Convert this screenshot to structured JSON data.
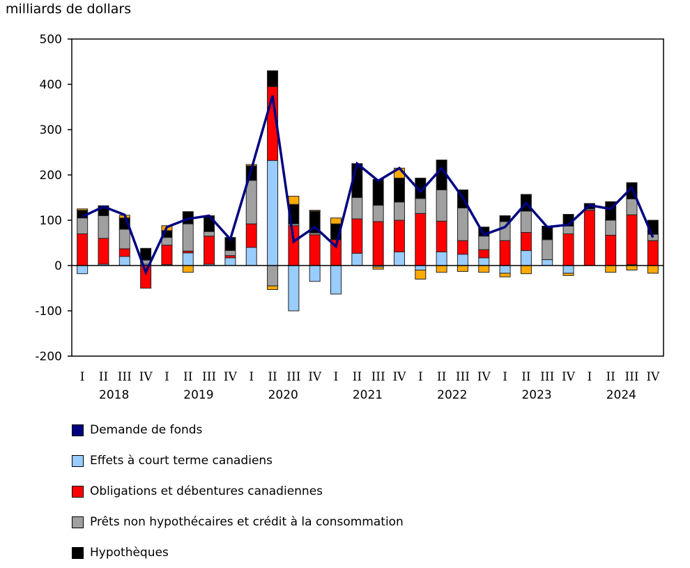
{
  "chart_data": {
    "type": "bar",
    "stacked": true,
    "ylabel": "milliards de dollars",
    "ylim": [
      -200,
      500
    ],
    "yticks": [
      -200,
      -100,
      0,
      100,
      200,
      300,
      400,
      500
    ],
    "grid": false,
    "legend_position": "bottom",
    "quarter_labels": [
      "I",
      "II",
      "III",
      "IV",
      "I",
      "II",
      "III",
      "IV",
      "I",
      "II",
      "III",
      "IV",
      "I",
      "II",
      "III",
      "IV",
      "I",
      "II",
      "III",
      "IV",
      "I",
      "II",
      "III",
      "IV",
      "I",
      "II",
      "III",
      "IV"
    ],
    "years": [
      "2018",
      "2019",
      "2020",
      "2021",
      "2022",
      "2023",
      "2024"
    ],
    "line": {
      "name": "Demande de fonds",
      "color": "#000080",
      "values": [
        108,
        130,
        112,
        -15,
        85,
        103,
        110,
        58,
        213,
        375,
        53,
        85,
        42,
        225,
        187,
        215,
        163,
        215,
        150,
        68,
        85,
        138,
        85,
        90,
        133,
        125,
        172,
        62
      ]
    },
    "series": [
      {
        "name": "Effets à court terme canadiens",
        "color": "#99ccff",
        "values": [
          -18,
          3,
          20,
          3,
          2,
          28,
          3,
          17,
          40,
          232,
          -100,
          -35,
          -63,
          27,
          -3,
          30,
          -10,
          30,
          25,
          17,
          -17,
          33,
          13,
          -17,
          0,
          0,
          2,
          0
        ]
      },
      {
        "name": "Obligations et débentures canadiennes",
        "color": "#ff0000",
        "values": [
          70,
          57,
          17,
          -50,
          43,
          4,
          62,
          5,
          52,
          163,
          88,
          68,
          57,
          76,
          97,
          70,
          115,
          68,
          30,
          18,
          55,
          40,
          0,
          70,
          122,
          67,
          110,
          55
        ]
      },
      {
        "name": "Prêts non hypothécaires et crédit à la consommation",
        "color": "#a0a0a0",
        "values": [
          35,
          50,
          43,
          9,
          17,
          60,
          10,
          11,
          96,
          -45,
          4,
          4,
          0,
          47,
          36,
          40,
          33,
          69,
          72,
          30,
          42,
          47,
          44,
          17,
          3,
          33,
          35,
          14
        ]
      },
      {
        "name": "Hypothèques",
        "color": "#000000",
        "values": [
          17,
          22,
          25,
          26,
          15,
          27,
          35,
          29,
          32,
          35,
          43,
          48,
          35,
          75,
          57,
          53,
          45,
          66,
          40,
          20,
          13,
          37,
          30,
          26,
          12,
          41,
          36,
          31
        ]
      },
      {
        "color": "#ffaa00",
        "values": [
          3,
          0,
          6,
          0,
          11,
          -15,
          0,
          0,
          3,
          -8,
          18,
          2,
          13,
          0,
          -5,
          22,
          -20,
          -15,
          -13,
          -15,
          -8,
          -18,
          0,
          -5,
          0,
          -15,
          -10,
          -17
        ]
      }
    ]
  }
}
